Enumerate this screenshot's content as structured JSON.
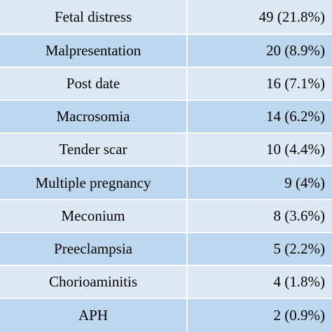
{
  "table": {
    "rows": [
      {
        "name": "Fetal distress",
        "value": "49 (21.8%)"
      },
      {
        "name": "Malpresentation",
        "value": "20 (8.9%)"
      },
      {
        "name": "Post date",
        "value": "16 (7.1%)"
      },
      {
        "name": "Macrosomia",
        "value": "14 (6.2%)"
      },
      {
        "name": "Tender scar",
        "value": "10 (4.4%)"
      },
      {
        "name": "Multiple pregnancy",
        "value": "9 (4%)"
      },
      {
        "name": "Meconium",
        "value": "8 (3.6%)"
      },
      {
        "name": "Preeclampsia",
        "value": "5 (2.2%)"
      },
      {
        "name": "Chorioaminitis",
        "value": "4 (1.8%)"
      },
      {
        "name": "APH",
        "value": "2 (0.9%)"
      }
    ],
    "colors": {
      "row_light": "#dce9f5",
      "row_dark": "#bdd7ee",
      "divider": "#ffffff"
    }
  }
}
